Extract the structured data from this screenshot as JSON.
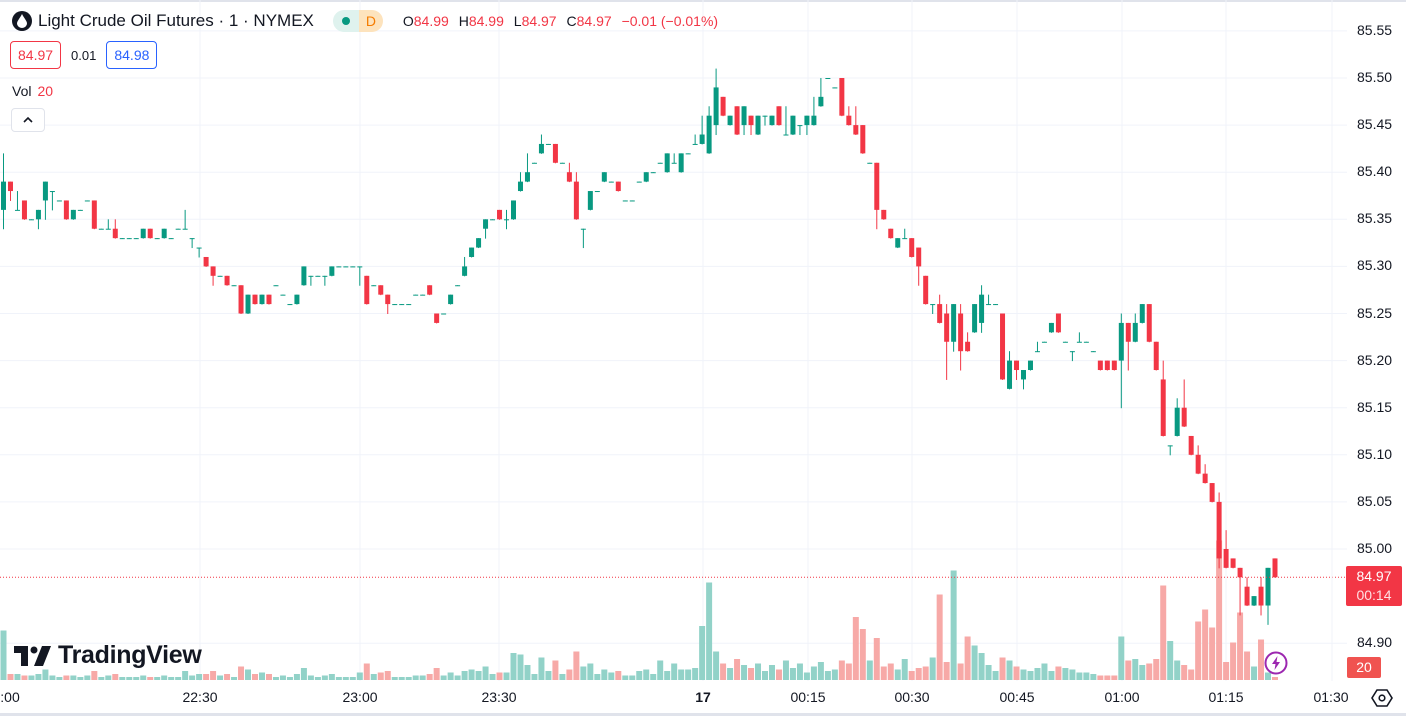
{
  "header": {
    "symbol_icon": "oil-drop-icon",
    "title": "Light Crude Oil Futures · 1 · NYMEX",
    "status_dot_color": "#089981",
    "delayed_badge": "D",
    "ohlc": {
      "o_label": "O",
      "o": "84.99",
      "h_label": "H",
      "h": "84.99",
      "l_label": "L",
      "l": "84.97",
      "c_label": "C",
      "c": "84.97",
      "change": "−0.01 (−0.01%)"
    },
    "bid": "84.97",
    "spread": "0.01",
    "ask": "84.98",
    "volume_label": "Vol",
    "volume_value": "20",
    "collapse_icon": "chevron-up-icon"
  },
  "price_axis": {
    "labels": [
      "85.55",
      "85.50",
      "85.45",
      "85.40",
      "85.35",
      "85.30",
      "85.25",
      "85.20",
      "85.15",
      "85.10",
      "85.05",
      "85.00",
      "84.90"
    ],
    "current_price": "84.97",
    "countdown": "00:14",
    "current_volume": "20"
  },
  "time_axis": {
    "labels": [
      ":00",
      "22:30",
      "23:00",
      "23:30",
      "17",
      "00:15",
      "00:30",
      "00:45",
      "01:00",
      "01:15",
      "01:30"
    ]
  },
  "logo_text": "TradingView",
  "icons": {
    "bolt": "lightning-icon",
    "settings": "settings-hexagon-icon"
  },
  "colors": {
    "up": "#089981",
    "down": "#f23645",
    "up_volume": "#92d2c8",
    "down_volume": "#f7a9a7",
    "ask": "#2962ff",
    "grid": "#f0f3fa"
  },
  "chart_data": {
    "type": "candlestick",
    "interval": "1 minute",
    "ylim": [
      84.87,
      85.57
    ],
    "grid": true,
    "last_price": 84.97,
    "fields": [
      "open",
      "high",
      "low",
      "close",
      "volume"
    ],
    "candles": [
      [
        85.36,
        85.42,
        85.34,
        85.39,
        330
      ],
      [
        85.39,
        85.39,
        85.37,
        85.38,
        40
      ],
      [
        85.36,
        85.38,
        85.36,
        85.36,
        40
      ],
      [
        85.37,
        85.37,
        85.35,
        85.35,
        30
      ],
      [
        85.35,
        85.35,
        85.35,
        85.35,
        30
      ],
      [
        85.35,
        85.36,
        85.34,
        85.36,
        40
      ],
      [
        85.37,
        85.39,
        85.35,
        85.39,
        70
      ],
      [
        85.38,
        85.38,
        85.36,
        85.38,
        30
      ],
      [
        85.37,
        85.37,
        85.37,
        85.37,
        20
      ],
      [
        85.37,
        85.37,
        85.35,
        85.35,
        30
      ],
      [
        85.35,
        85.36,
        85.35,
        85.36,
        30
      ],
      [
        85.36,
        85.36,
        85.36,
        85.36,
        20
      ],
      [
        85.37,
        85.37,
        85.37,
        85.37,
        30
      ],
      [
        85.37,
        85.37,
        85.34,
        85.34,
        60
      ],
      [
        85.34,
        85.34,
        85.34,
        85.34,
        20
      ],
      [
        85.34,
        85.35,
        85.34,
        85.34,
        30
      ],
      [
        85.34,
        85.35,
        85.33,
        85.33,
        40
      ],
      [
        85.33,
        85.33,
        85.33,
        85.33,
        20
      ],
      [
        85.33,
        85.33,
        85.33,
        85.33,
        20
      ],
      [
        85.33,
        85.33,
        85.33,
        85.33,
        20
      ],
      [
        85.33,
        85.34,
        85.33,
        85.34,
        30
      ],
      [
        85.34,
        85.34,
        85.33,
        85.33,
        20
      ],
      [
        85.33,
        85.33,
        85.33,
        85.33,
        20
      ],
      [
        85.33,
        85.34,
        85.33,
        85.34,
        30
      ],
      [
        85.33,
        85.33,
        85.33,
        85.33,
        20
      ],
      [
        85.34,
        85.34,
        85.34,
        85.34,
        20
      ],
      [
        85.34,
        85.36,
        85.34,
        85.34,
        60
      ],
      [
        85.33,
        85.33,
        85.32,
        85.33,
        30
      ],
      [
        85.32,
        85.32,
        85.31,
        85.32,
        40
      ],
      [
        85.31,
        85.31,
        85.3,
        85.3,
        40
      ],
      [
        85.3,
        85.3,
        85.28,
        85.29,
        60
      ],
      [
        85.29,
        85.29,
        85.29,
        85.29,
        30
      ],
      [
        85.29,
        85.29,
        85.28,
        85.28,
        40
      ],
      [
        85.28,
        85.28,
        85.28,
        85.28,
        20
      ],
      [
        85.28,
        85.28,
        85.25,
        85.25,
        90
      ],
      [
        85.25,
        85.27,
        85.25,
        85.27,
        70
      ],
      [
        85.27,
        85.27,
        85.26,
        85.26,
        40
      ],
      [
        85.26,
        85.27,
        85.26,
        85.27,
        50
      ],
      [
        85.27,
        85.27,
        85.26,
        85.26,
        40
      ],
      [
        85.28,
        85.28,
        85.28,
        85.28,
        20
      ],
      [
        85.27,
        85.27,
        85.27,
        85.27,
        30
      ],
      [
        85.26,
        85.26,
        85.26,
        85.26,
        20
      ],
      [
        85.26,
        85.27,
        85.26,
        85.27,
        40
      ],
      [
        85.28,
        85.3,
        85.28,
        85.3,
        80
      ],
      [
        85.29,
        85.29,
        85.28,
        85.29,
        30
      ],
      [
        85.29,
        85.29,
        85.29,
        85.29,
        20
      ],
      [
        85.29,
        85.29,
        85.28,
        85.29,
        30
      ],
      [
        85.29,
        85.3,
        85.29,
        85.3,
        40
      ],
      [
        85.3,
        85.3,
        85.3,
        85.3,
        20
      ],
      [
        85.3,
        85.3,
        85.3,
        85.3,
        20
      ],
      [
        85.3,
        85.3,
        85.3,
        85.3,
        20
      ],
      [
        85.3,
        85.3,
        85.28,
        85.3,
        50
      ],
      [
        85.29,
        85.29,
        85.26,
        85.26,
        110
      ],
      [
        85.28,
        85.28,
        85.28,
        85.28,
        40
      ],
      [
        85.28,
        85.28,
        85.27,
        85.27,
        50
      ],
      [
        85.27,
        85.27,
        85.25,
        85.26,
        60
      ],
      [
        85.26,
        85.26,
        85.26,
        85.26,
        20
      ],
      [
        85.26,
        85.26,
        85.26,
        85.26,
        20
      ],
      [
        85.26,
        85.26,
        85.26,
        85.26,
        20
      ],
      [
        85.27,
        85.27,
        85.27,
        85.27,
        30
      ],
      [
        85.27,
        85.27,
        85.27,
        85.27,
        30
      ],
      [
        85.28,
        85.28,
        85.27,
        85.27,
        40
      ],
      [
        85.25,
        85.25,
        85.24,
        85.24,
        80
      ],
      [
        85.25,
        85.25,
        85.25,
        85.25,
        30
      ],
      [
        85.26,
        85.27,
        85.26,
        85.27,
        50
      ],
      [
        85.28,
        85.28,
        85.28,
        85.28,
        30
      ],
      [
        85.29,
        85.31,
        85.29,
        85.3,
        60
      ],
      [
        85.31,
        85.32,
        85.31,
        85.32,
        70
      ],
      [
        85.32,
        85.33,
        85.32,
        85.33,
        60
      ],
      [
        85.34,
        85.35,
        85.33,
        85.35,
        90
      ],
      [
        85.35,
        85.35,
        85.35,
        85.35,
        40
      ],
      [
        85.36,
        85.36,
        85.35,
        85.35,
        50
      ],
      [
        85.35,
        85.36,
        85.34,
        85.35,
        50
      ],
      [
        85.35,
        85.37,
        85.35,
        85.37,
        180
      ],
      [
        85.38,
        85.4,
        85.38,
        85.39,
        170
      ],
      [
        85.39,
        85.42,
        85.39,
        85.4,
        100
      ],
      [
        85.41,
        85.41,
        85.41,
        85.41,
        40
      ],
      [
        85.42,
        85.44,
        85.42,
        85.43,
        150
      ],
      [
        85.43,
        85.43,
        85.43,
        85.43,
        60
      ],
      [
        85.43,
        85.43,
        85.41,
        85.41,
        130
      ],
      [
        85.41,
        85.41,
        85.41,
        85.41,
        40
      ],
      [
        85.4,
        85.41,
        85.39,
        85.39,
        70
      ],
      [
        85.39,
        85.4,
        85.35,
        85.35,
        190
      ],
      [
        85.34,
        85.34,
        85.32,
        85.34,
        90
      ],
      [
        85.36,
        85.38,
        85.36,
        85.38,
        110
      ],
      [
        85.38,
        85.38,
        85.38,
        85.38,
        40
      ],
      [
        85.39,
        85.4,
        85.39,
        85.4,
        70
      ],
      [
        85.39,
        85.39,
        85.39,
        85.39,
        50
      ],
      [
        85.39,
        85.39,
        85.38,
        85.38,
        60
      ],
      [
        85.37,
        85.37,
        85.37,
        85.37,
        30
      ],
      [
        85.37,
        85.37,
        85.37,
        85.37,
        30
      ],
      [
        85.39,
        85.39,
        85.39,
        85.39,
        60
      ],
      [
        85.39,
        85.4,
        85.39,
        85.4,
        70
      ],
      [
        85.4,
        85.4,
        85.4,
        85.4,
        40
      ],
      [
        85.41,
        85.41,
        85.41,
        85.41,
        130
      ],
      [
        85.4,
        85.42,
        85.4,
        85.42,
        60
      ],
      [
        85.41,
        85.42,
        85.41,
        85.41,
        110
      ],
      [
        85.4,
        85.42,
        85.4,
        85.42,
        70
      ],
      [
        85.42,
        85.42,
        85.42,
        85.42,
        70
      ],
      [
        85.43,
        85.44,
        85.43,
        85.43,
        80
      ],
      [
        85.43,
        85.46,
        85.43,
        85.44,
        360
      ],
      [
        85.42,
        85.47,
        85.42,
        85.46,
        650
      ],
      [
        85.45,
        85.51,
        85.44,
        85.49,
        190
      ],
      [
        85.48,
        85.48,
        85.46,
        85.46,
        110
      ],
      [
        85.45,
        85.46,
        85.45,
        85.46,
        80
      ],
      [
        85.47,
        85.47,
        85.44,
        85.44,
        140
      ],
      [
        85.45,
        85.47,
        85.44,
        85.47,
        100
      ],
      [
        85.46,
        85.46,
        85.44,
        85.45,
        80
      ],
      [
        85.44,
        85.46,
        85.44,
        85.46,
        110
      ],
      [
        85.46,
        85.46,
        85.45,
        85.46,
        60
      ],
      [
        85.45,
        85.46,
        85.45,
        85.46,
        100
      ],
      [
        85.47,
        85.47,
        85.45,
        85.45,
        70
      ],
      [
        85.44,
        85.47,
        85.44,
        85.44,
        130
      ],
      [
        85.44,
        85.46,
        85.44,
        85.46,
        80
      ],
      [
        85.45,
        85.45,
        85.44,
        85.45,
        110
      ],
      [
        85.45,
        85.46,
        85.44,
        85.46,
        50
      ],
      [
        85.45,
        85.48,
        85.45,
        85.46,
        90
      ],
      [
        85.47,
        85.5,
        85.47,
        85.48,
        120
      ],
      [
        85.5,
        85.5,
        85.5,
        85.5,
        60
      ],
      [
        85.49,
        85.49,
        85.49,
        85.49,
        70
      ],
      [
        85.5,
        85.5,
        85.46,
        85.46,
        130
      ],
      [
        85.46,
        85.47,
        85.45,
        85.45,
        110
      ],
      [
        85.45,
        85.47,
        85.44,
        85.44,
        420
      ],
      [
        85.45,
        85.45,
        85.42,
        85.42,
        340
      ],
      [
        85.41,
        85.41,
        85.41,
        85.41,
        130
      ],
      [
        85.41,
        85.41,
        85.34,
        85.36,
        280
      ],
      [
        85.36,
        85.36,
        85.35,
        85.35,
        90
      ],
      [
        85.34,
        85.34,
        85.33,
        85.33,
        110
      ],
      [
        85.32,
        85.33,
        85.32,
        85.33,
        70
      ],
      [
        85.33,
        85.34,
        85.33,
        85.33,
        140
      ],
      [
        85.33,
        85.33,
        85.31,
        85.31,
        60
      ],
      [
        85.32,
        85.32,
        85.28,
        85.3,
        80
      ],
      [
        85.29,
        85.29,
        85.26,
        85.26,
        90
      ],
      [
        85.26,
        85.26,
        85.25,
        85.26,
        150
      ],
      [
        85.26,
        85.27,
        85.24,
        85.24,
        570
      ],
      [
        85.25,
        85.26,
        85.18,
        85.22,
        120
      ],
      [
        85.22,
        85.26,
        85.21,
        85.26,
        730
      ],
      [
        85.25,
        85.26,
        85.19,
        85.21,
        110
      ],
      [
        85.22,
        85.23,
        85.21,
        85.21,
        290
      ],
      [
        85.23,
        85.26,
        85.23,
        85.26,
        230
      ],
      [
        85.24,
        85.28,
        85.23,
        85.27,
        180
      ],
      [
        85.26,
        85.27,
        85.26,
        85.26,
        100
      ],
      [
        85.26,
        85.26,
        85.26,
        85.26,
        60
      ],
      [
        85.25,
        85.25,
        85.18,
        85.18,
        150
      ],
      [
        85.17,
        85.21,
        85.17,
        85.2,
        130
      ],
      [
        85.2,
        85.2,
        85.18,
        85.19,
        90
      ],
      [
        85.18,
        85.19,
        85.17,
        85.19,
        70
      ],
      [
        85.19,
        85.2,
        85.19,
        85.2,
        60
      ],
      [
        85.21,
        85.22,
        85.21,
        85.21,
        80
      ],
      [
        85.22,
        85.22,
        85.22,
        85.22,
        110
      ],
      [
        85.23,
        85.24,
        85.23,
        85.24,
        60
      ],
      [
        85.25,
        85.25,
        85.23,
        85.23,
        90
      ],
      [
        85.22,
        85.22,
        85.22,
        85.22,
        80
      ],
      [
        85.21,
        85.21,
        85.2,
        85.21,
        70
      ],
      [
        85.22,
        85.23,
        85.22,
        85.22,
        50
      ],
      [
        85.22,
        85.22,
        85.22,
        85.22,
        50
      ],
      [
        85.21,
        85.21,
        85.21,
        85.21,
        40
      ],
      [
        85.2,
        85.2,
        85.19,
        85.19,
        30
      ],
      [
        85.2,
        85.2,
        85.19,
        85.19,
        30
      ],
      [
        85.2,
        85.2,
        85.19,
        85.19,
        30
      ],
      [
        85.2,
        85.25,
        85.15,
        85.24,
        290
      ],
      [
        85.24,
        85.24,
        85.19,
        85.22,
        130
      ],
      [
        85.22,
        85.25,
        85.22,
        85.24,
        140
      ],
      [
        85.24,
        85.26,
        85.24,
        85.26,
        100
      ],
      [
        85.26,
        85.26,
        85.22,
        85.22,
        110
      ],
      [
        85.22,
        85.22,
        85.19,
        85.19,
        140
      ],
      [
        85.18,
        85.2,
        85.12,
        85.12,
        630
      ],
      [
        85.11,
        85.11,
        85.1,
        85.11,
        260
      ],
      [
        85.12,
        85.16,
        85.12,
        85.15,
        130
      ],
      [
        85.15,
        85.18,
        85.13,
        85.13,
        100
      ],
      [
        85.12,
        85.12,
        85.1,
        85.1,
        70
      ],
      [
        85.1,
        85.11,
        85.08,
        85.08,
        390
      ],
      [
        85.08,
        85.09,
        85.07,
        85.07,
        470
      ],
      [
        85.07,
        85.07,
        85.05,
        85.05,
        350
      ],
      [
        85.05,
        85.06,
        84.98,
        84.99,
        930
      ],
      [
        85.0,
        85.02,
        84.98,
        84.98,
        120
      ],
      [
        84.99,
        84.99,
        84.98,
        84.98,
        250
      ],
      [
        84.98,
        84.98,
        84.93,
        84.97,
        450
      ],
      [
        84.96,
        84.97,
        84.94,
        84.94,
        190
      ],
      [
        84.94,
        84.95,
        84.94,
        84.95,
        90
      ],
      [
        84.96,
        84.97,
        84.93,
        84.94,
        270
      ],
      [
        84.94,
        84.98,
        84.92,
        84.98,
        50
      ],
      [
        84.99,
        84.99,
        84.97,
        84.97,
        20
      ]
    ]
  }
}
